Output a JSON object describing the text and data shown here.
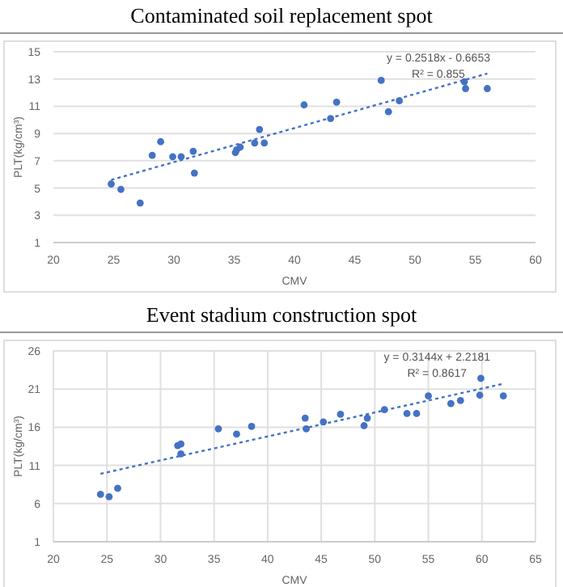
{
  "chart_data": [
    {
      "type": "scatter",
      "title": "Contaminated soil replacement spot",
      "xlabel": "CMV",
      "ylabel": "PLT(kg/cm³)",
      "xlim": [
        20,
        60
      ],
      "xticks": [
        20,
        25,
        30,
        35,
        40,
        45,
        50,
        55,
        60
      ],
      "ylim": [
        1,
        15
      ],
      "yticks": [
        1,
        3,
        5,
        7,
        9,
        11,
        13,
        15
      ],
      "grid": "y",
      "marker": "circle",
      "annotations": [
        "y = 0.2518x - 0.6653",
        "R² = 0.855"
      ],
      "series": [
        {
          "color": "#4472c4",
          "x": [
            24.8,
            25.6,
            27.2,
            28.2,
            28.9,
            29.9,
            30.6,
            31.6,
            31.7,
            35.1,
            35.2,
            35.5,
            36.7,
            37.1,
            37.5,
            40.8,
            43.0,
            43.5,
            47.2,
            47.8,
            48.7,
            54.1,
            54.2,
            56.0
          ],
          "values": [
            5.3,
            4.9,
            3.9,
            7.4,
            8.4,
            7.3,
            7.3,
            7.7,
            6.1,
            7.6,
            7.8,
            8.0,
            8.3,
            9.3,
            8.3,
            11.1,
            10.1,
            11.3,
            12.9,
            10.6,
            11.4,
            12.8,
            12.3,
            12.3
          ]
        },
        {
          "type": "line",
          "color": "#4472c4",
          "line_style": "dotted",
          "marker": "none",
          "x": [
            24.8,
            56.0
          ],
          "values": [
            5.6,
            13.4
          ]
        }
      ]
    },
    {
      "type": "scatter",
      "title": "Event stadium construction spot",
      "xlabel": "CMV",
      "ylabel": "PLT(kg/cm³)",
      "xlim": [
        20,
        65
      ],
      "xticks": [
        20,
        25,
        30,
        35,
        40,
        45,
        50,
        55,
        60,
        65
      ],
      "ylim": [
        1,
        26
      ],
      "yticks": [
        1,
        6,
        11,
        16,
        21,
        26
      ],
      "grid": true,
      "marker": "circle",
      "annotations": [
        "y = 0.3144x + 2.2181",
        "R² = 0.8617"
      ],
      "series": [
        {
          "color": "#4472c4",
          "x": [
            24.4,
            25.2,
            26.0,
            31.6,
            31.9,
            31.9,
            35.4,
            37.1,
            38.5,
            43.5,
            43.6,
            45.2,
            46.8,
            49.0,
            49.3,
            50.9,
            53.0,
            53.9,
            55.0,
            57.1,
            58.0,
            59.8,
            59.9,
            62.0
          ],
          "values": [
            7.2,
            6.9,
            8.0,
            13.6,
            13.8,
            12.5,
            15.8,
            15.1,
            16.1,
            17.2,
            15.8,
            16.7,
            17.7,
            16.2,
            17.2,
            18.3,
            17.8,
            17.8,
            20.1,
            19.1,
            19.5,
            20.2,
            22.4,
            20.1
          ]
        },
        {
          "type": "line",
          "color": "#4472c4",
          "line_style": "dotted",
          "marker": "none",
          "x": [
            24.4,
            62.0
          ],
          "values": [
            9.9,
            21.7
          ]
        }
      ]
    }
  ]
}
